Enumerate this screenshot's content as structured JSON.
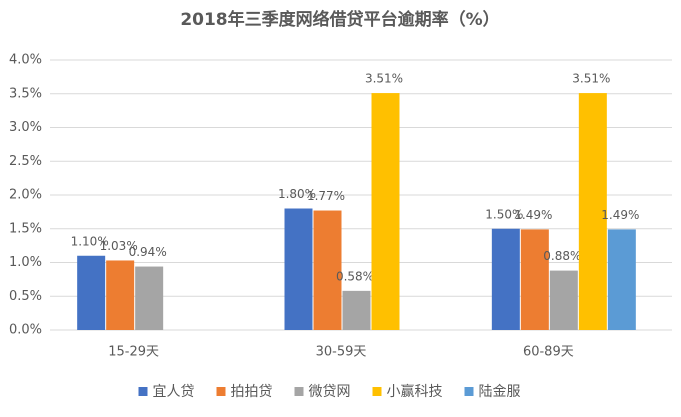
{
  "chart_data": {
    "type": "bar",
    "title": "2018年三季度网络借贷平台逾期率（%）",
    "categories": [
      "15-29天",
      "30-59天",
      "60-89天"
    ],
    "series": [
      {
        "name": "宜人贷",
        "color": "#4472c4",
        "values": [
          1.1,
          1.8,
          1.5
        ],
        "value_labels": [
          "1.10%",
          "1.80%",
          "1.50%"
        ]
      },
      {
        "name": "拍拍贷",
        "color": "#ed7d31",
        "values": [
          1.03,
          1.77,
          1.49
        ],
        "value_labels": [
          "1.03%",
          "1.77%",
          "1.49%"
        ]
      },
      {
        "name": "微贷网",
        "color": "#a5a5a5",
        "values": [
          0.94,
          0.58,
          0.88
        ],
        "value_labels": [
          "0.94%",
          "0.58%",
          "0.88%"
        ]
      },
      {
        "name": "小赢科技",
        "color": "#ffc000",
        "values": [
          null,
          3.51,
          3.51
        ],
        "value_labels": [
          null,
          "3.51%",
          "3.51%"
        ]
      },
      {
        "name": "陆金服",
        "color": "#5b9bd5",
        "values": [
          null,
          null,
          1.49
        ],
        "value_labels": [
          null,
          null,
          "1.49%"
        ]
      }
    ],
    "ylim": [
      0,
      4
    ],
    "yticks": [
      {
        "value": 0,
        "label": "0.0%"
      },
      {
        "value": 0.5,
        "label": "0.5%"
      },
      {
        "value": 1,
        "label": "1.0%"
      },
      {
        "value": 1.5,
        "label": "1.5%"
      },
      {
        "value": 2,
        "label": "2.0%"
      },
      {
        "value": 2.5,
        "label": "2.5%"
      },
      {
        "value": 3,
        "label": "3.0%"
      },
      {
        "value": 3.5,
        "label": "3.5%"
      },
      {
        "value": 4,
        "label": "4.0%"
      }
    ],
    "grid": true,
    "legend": "bottom"
  }
}
